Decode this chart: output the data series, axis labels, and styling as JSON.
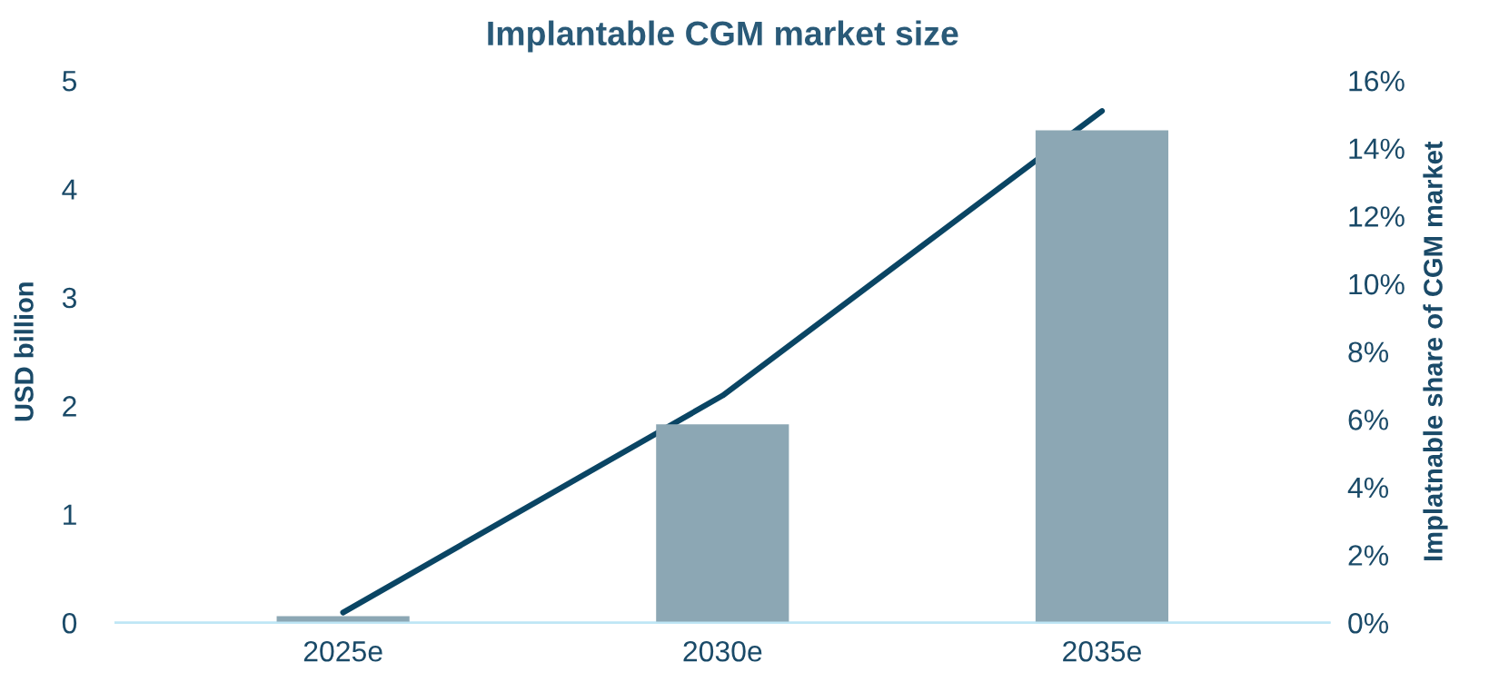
{
  "chart_data": {
    "type": "bar",
    "title": "Implantable CGM market size",
    "ylabel": "USD billion",
    "y2label": "Implatnable share of CGM market",
    "categories": [
      "2025e",
      "2030e",
      "2035e"
    ],
    "series": [
      {
        "color": "#8ca7b4",
        "values": [
          0.06,
          1.83,
          4.54
        ]
      },
      {
        "type": "line",
        "axis": "y2",
        "color": "#0a4564",
        "values": [
          0.3,
          6.7,
          15.1
        ]
      }
    ],
    "ylim": [
      0,
      5
    ],
    "yticks": [
      0,
      1,
      2,
      3,
      4,
      5
    ],
    "y2lim": [
      0,
      16
    ],
    "y2ticks": [
      {
        "value": 0,
        "label": "0%"
      },
      {
        "value": 2,
        "label": "2%"
      },
      {
        "value": 4,
        "label": "4%"
      },
      {
        "value": 6,
        "label": "6%"
      },
      {
        "value": 8,
        "label": "8%"
      },
      {
        "value": 10,
        "label": "10%"
      },
      {
        "value": 12,
        "label": "12%"
      },
      {
        "value": 14,
        "label": "14%"
      },
      {
        "value": 16,
        "label": "16%"
      }
    ],
    "grid": false,
    "marker": "none",
    "line_style": "solid"
  }
}
